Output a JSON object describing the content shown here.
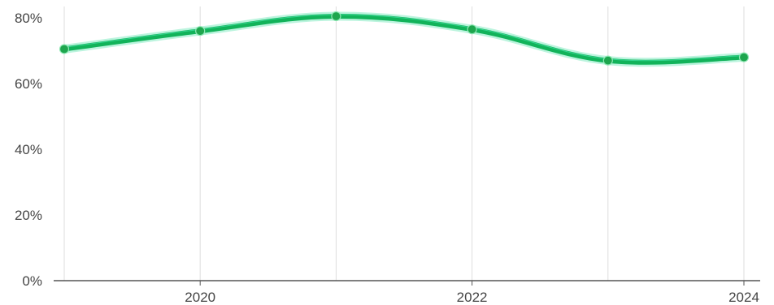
{
  "chart_data": {
    "type": "line",
    "title": "",
    "xlabel": "",
    "ylabel": "",
    "x": [
      2019,
      2020,
      2021,
      2022,
      2023,
      2024
    ],
    "series": [
      {
        "values": [
          70.5,
          76,
          80.5,
          76.5,
          67,
          68
        ]
      }
    ],
    "xlim": [
      2019,
      2024
    ],
    "ylim": [
      0,
      80
    ],
    "x_ticks": [
      {
        "value": 2020,
        "label": "2020"
      },
      {
        "value": 2022,
        "label": "2022"
      },
      {
        "value": 2024,
        "label": "2024"
      }
    ],
    "y_ticks": [
      {
        "value": 0,
        "label": "0%"
      },
      {
        "value": 20,
        "label": "20%"
      },
      {
        "value": 40,
        "label": "40%"
      },
      {
        "value": 60,
        "label": "60%"
      },
      {
        "value": 80,
        "label": "80%"
      }
    ],
    "vertical_grid_years": [
      2019,
      2020,
      2021,
      2022,
      2023,
      2024
    ],
    "grid": "vertical",
    "colors": {
      "line": "#12b35a",
      "line_light": "#3fe0a0",
      "point": "#1ea64e",
      "grid": "#dddddd",
      "axis": "#555555"
    }
  }
}
